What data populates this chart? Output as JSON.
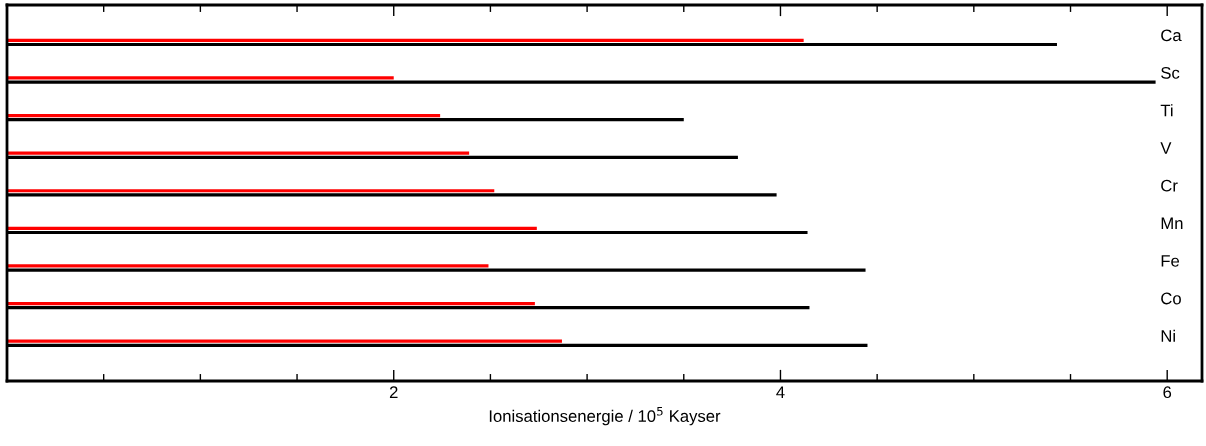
{
  "chart_data": {
    "type": "bar",
    "orientation": "horizontal",
    "xlabel": "Ionisationsenergie / 10$^{5}$ Kayser",
    "categories": [
      "Ca",
      "Sc",
      "Ti",
      "V",
      "Cr",
      "Mn",
      "Fe",
      "Co",
      "Ni"
    ],
    "series": [
      {
        "color": "#ff0000",
        "values": [
          4.12,
          2.0,
          2.24,
          2.39,
          2.52,
          2.74,
          2.49,
          2.73,
          2.87
        ]
      },
      {
        "color": "#000000",
        "values": [
          5.43,
          5.94,
          3.5,
          3.78,
          3.98,
          4.14,
          4.44,
          4.15,
          4.45
        ]
      }
    ],
    "xlim": [
      0,
      6.18
    ],
    "xticks": [
      {
        "value": 0.5,
        "label": null
      },
      {
        "value": 1,
        "label": null
      },
      {
        "value": 1.5,
        "label": null
      },
      2,
      {
        "value": 2.5,
        "label": null
      },
      {
        "value": 3,
        "label": null
      },
      {
        "value": 3.5,
        "label": null
      },
      4,
      {
        "value": 4.5,
        "label": null
      },
      {
        "value": 5,
        "label": null
      },
      {
        "value": 5.5,
        "label": null
      },
      6
    ],
    "grid": false,
    "legend": false
  }
}
